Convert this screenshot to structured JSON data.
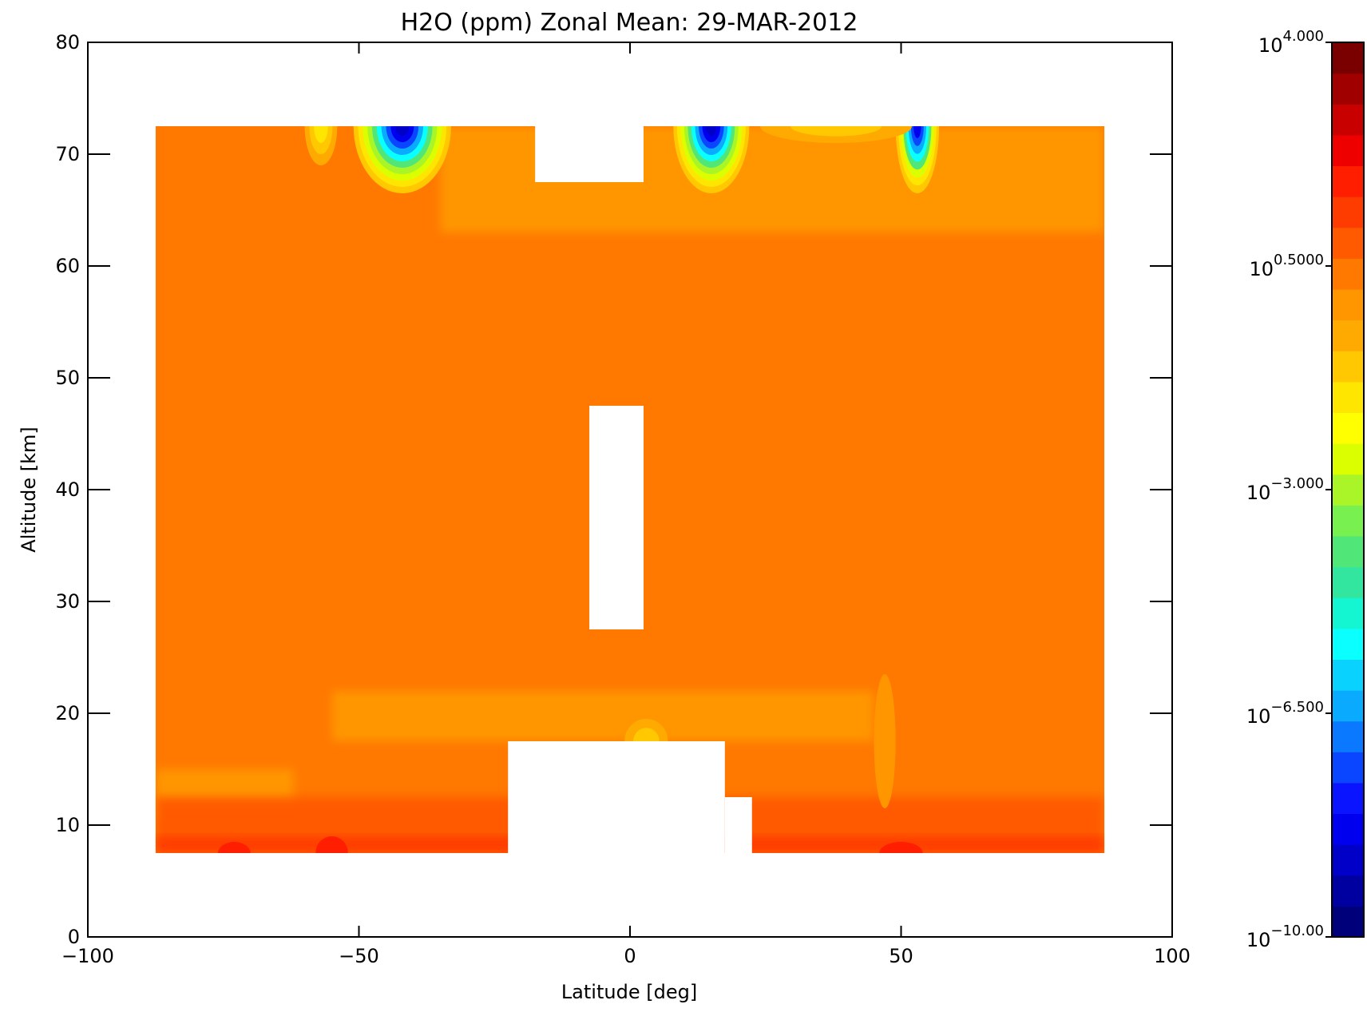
{
  "chart_data": {
    "type": "heatmap",
    "title": "H2O (ppm) Zonal Mean: 29-MAR-2012",
    "xlabel": "Latitude [deg]",
    "ylabel": "Altitude [km]",
    "xlim": [
      -100,
      100
    ],
    "ylim": [
      0,
      80
    ],
    "x_ticks": [
      "-100",
      "-50",
      "0",
      "50",
      "100"
    ],
    "y_ticks": [
      "0",
      "10",
      "20",
      "30",
      "40",
      "50",
      "60",
      "70",
      "80"
    ],
    "grid": false,
    "colorbar": {
      "scale": "log10",
      "range_exponent": [
        -10.0,
        4.0
      ],
      "tick_exponents": [
        4.0,
        0.5,
        -3.0,
        -6.5,
        -10.0
      ],
      "tick_bases": [
        "10",
        "10",
        "10",
        "10",
        "10"
      ],
      "tick_exponent_labels": [
        "4.000",
        "0.5000",
        "-3.000",
        "-6.500",
        "-10.00"
      ],
      "colors": [
        "#00007a",
        "#0000a0",
        "#0000c8",
        "#0000ee",
        "#0a14ff",
        "#0a46ff",
        "#0a78ff",
        "#0aaaff",
        "#0ad2ff",
        "#0affff",
        "#14f5d2",
        "#32e6a0",
        "#50e678",
        "#78f050",
        "#aaf528",
        "#dcff00",
        "#ffff00",
        "#ffe600",
        "#ffc800",
        "#ffaa00",
        "#ff9600",
        "#ff7800",
        "#ff5a00",
        "#ff3c00",
        "#ff1e00",
        "#ee0000",
        "#c80000",
        "#a00000",
        "#7a0000"
      ]
    },
    "data_extent": {
      "lat": [
        -87.5,
        87.5
      ],
      "alt": [
        7.5,
        72.5
      ],
      "background_level_color": "#ff7800"
    },
    "missing_regions": [
      {
        "lat": [
          -17.5,
          2.5
        ],
        "alt": [
          67.5,
          72.5
        ]
      },
      {
        "lat": [
          -7.5,
          2.5
        ],
        "alt": [
          27.5,
          47.5
        ]
      },
      {
        "lat": [
          -22.5,
          17.5
        ],
        "alt": [
          7.5,
          17.5
        ]
      },
      {
        "lat": [
          17.5,
          22.5
        ],
        "alt": [
          7.5,
          12.5
        ]
      }
    ],
    "fields": [
      {
        "lat": [
          -35,
          87.5
        ],
        "alt": [
          63,
          72.5
        ],
        "color": "#ff9600"
      },
      {
        "lat": [
          -87.5,
          -62
        ],
        "alt": [
          10.5,
          15
        ],
        "color": "#ff9600"
      },
      {
        "lat": [
          -55,
          45
        ],
        "alt": [
          17.5,
          22
        ],
        "color": "#ff9600"
      },
      {
        "lat": [
          -87.5,
          87.5
        ],
        "alt": [
          7.5,
          12.5
        ],
        "color": "#ff5a00"
      },
      {
        "lat": [
          -87.5,
          87.5
        ],
        "alt": [
          7.5,
          9
        ],
        "color": "#ff3c00"
      }
    ],
    "features": [
      {
        "lat": -42,
        "alt": 72.5,
        "w": 9,
        "h": 6.0,
        "levels": [
          "#ffc800",
          "#ffe600",
          "#dcff00",
          "#aaf528",
          "#50e678",
          "#0affff",
          "#0aaaff",
          "#0a46ff",
          "#0000ee",
          "#0000c8"
        ]
      },
      {
        "lat": 15,
        "alt": 72.5,
        "w": 7,
        "h": 6.0,
        "levels": [
          "#ffc800",
          "#ffe600",
          "#dcff00",
          "#aaf528",
          "#50e678",
          "#0affff",
          "#0aaaff",
          "#0a46ff",
          "#0000ee",
          "#0000c8"
        ]
      },
      {
        "lat": 53,
        "alt": 72.5,
        "w": 4,
        "h": 6.0,
        "levels": [
          "#ffc800",
          "#ffe600",
          "#dcff00",
          "#50e678",
          "#0affff",
          "#0aaaff",
          "#0a46ff",
          "#0000ee"
        ]
      },
      {
        "lat": -57,
        "alt": 72.5,
        "w": 3,
        "h": 3.5,
        "levels": [
          "#ffaa00",
          "#ffc800",
          "#ffe600"
        ]
      },
      {
        "lat": 38,
        "alt": 72.5,
        "w": 14,
        "h": 1.5,
        "levels": [
          "#ffaa00",
          "#ffc800"
        ]
      },
      {
        "lat": 3,
        "alt": 17.5,
        "w": 4,
        "h": 2.0,
        "levels": [
          "#ffaa00",
          "#ffc800"
        ]
      },
      {
        "lat": 47,
        "alt": 17.5,
        "w": 2,
        "h": 6.0,
        "levels": [
          "#ff9600"
        ]
      },
      {
        "lat": -55,
        "alt": 7.5,
        "w": 3,
        "h": 1.5,
        "levels": [
          "#ff1e00"
        ]
      },
      {
        "lat": -73,
        "alt": 7.5,
        "w": 3,
        "h": 1.0,
        "levels": [
          "#ff1e00"
        ]
      },
      {
        "lat": 50,
        "alt": 7.5,
        "w": 4,
        "h": 1.0,
        "levels": [
          "#ff1e00"
        ]
      }
    ]
  }
}
